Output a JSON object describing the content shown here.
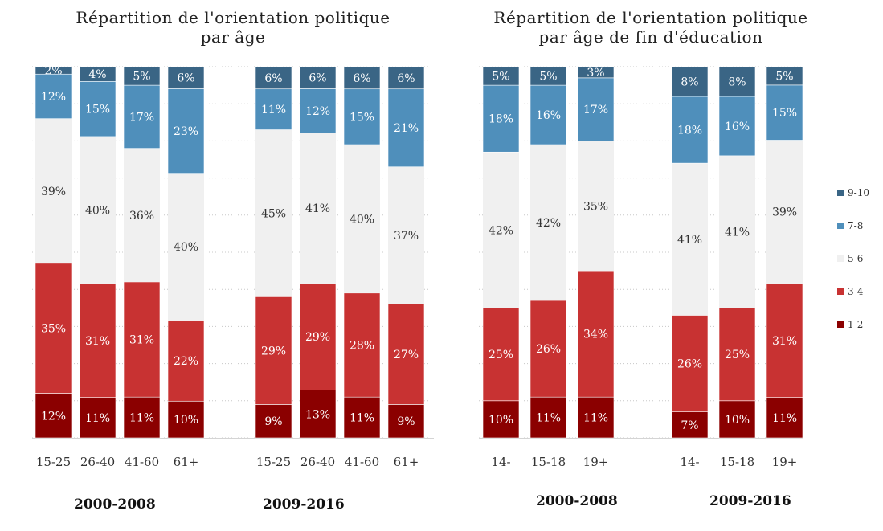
{
  "colors": {
    "9-10": "#3a6585",
    "7-8": "#4f8fbb",
    "5-6": "#f0f0f0",
    "3-4": "#c83232",
    "1-2": "#8b0000"
  },
  "legend": [
    "9-10",
    "7-8",
    "5-6",
    "3-4",
    "1-2"
  ],
  "chart_data": [
    {
      "type": "bar",
      "stacked": true,
      "title_lines": [
        "Répartition de l'orientation politique",
        "par âge"
      ],
      "groups": [
        {
          "label": "2000-2008",
          "categories": [
            "15-25",
            "26-40",
            "41-60",
            "61+"
          ]
        },
        {
          "label": "2009-2016",
          "categories": [
            "15-25",
            "26-40",
            "41-60",
            "61+"
          ]
        }
      ],
      "series": [
        {
          "name": "1-2",
          "values": [
            12,
            11,
            11,
            10,
            9,
            13,
            11,
            9
          ]
        },
        {
          "name": "3-4",
          "values": [
            35,
            31,
            31,
            22,
            29,
            29,
            28,
            27
          ]
        },
        {
          "name": "5-6",
          "values": [
            39,
            40,
            36,
            40,
            45,
            41,
            40,
            37
          ]
        },
        {
          "name": "7-8",
          "values": [
            12,
            15,
            17,
            23,
            11,
            12,
            15,
            21
          ]
        },
        {
          "name": "9-10",
          "values": [
            2,
            4,
            5,
            6,
            6,
            6,
            6,
            6
          ]
        }
      ],
      "ylim": [
        0,
        100
      ],
      "grid": true
    },
    {
      "type": "bar",
      "stacked": true,
      "title_lines": [
        "Répartition de l'orientation politique",
        "par âge de fin d'éducation"
      ],
      "groups": [
        {
          "label": "2000-2008",
          "categories": [
            "14-",
            "15-18",
            "19+"
          ]
        },
        {
          "label": "2009-2016",
          "categories": [
            "14-",
            "15-18",
            "19+"
          ]
        }
      ],
      "series": [
        {
          "name": "1-2",
          "values": [
            10,
            11,
            11,
            7,
            10,
            11
          ]
        },
        {
          "name": "3-4",
          "values": [
            25,
            26,
            34,
            26,
            25,
            31
          ]
        },
        {
          "name": "5-6",
          "values": [
            42,
            42,
            35,
            41,
            41,
            39
          ]
        },
        {
          "name": "7-8",
          "values": [
            18,
            16,
            17,
            18,
            16,
            15
          ]
        },
        {
          "name": "9-10",
          "values": [
            5,
            5,
            3,
            8,
            8,
            5
          ]
        }
      ],
      "ylim": [
        0,
        100
      ],
      "grid": true
    }
  ]
}
